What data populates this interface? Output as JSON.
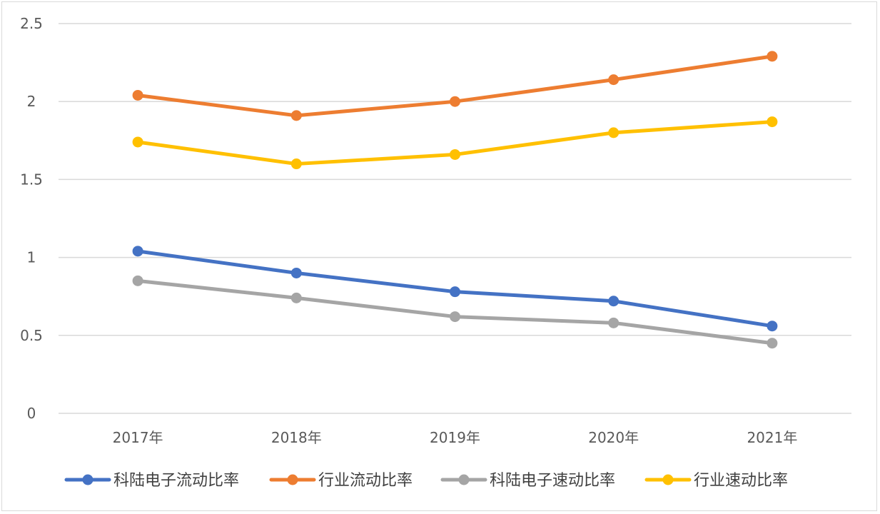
{
  "chart_data": {
    "type": "line",
    "title": "",
    "xlabel": "",
    "ylabel": "",
    "categories": [
      "2017年",
      "2018年",
      "2019年",
      "2020年",
      "2021年"
    ],
    "ylim": [
      0,
      2.5
    ],
    "yticks": [
      "0",
      "0.5",
      "1",
      "1.5",
      "2",
      "2.5"
    ],
    "grid": true,
    "legend_position": "bottom",
    "series": [
      {
        "name": "科陆电子流动比率",
        "color": "#4472C4",
        "values": [
          1.04,
          0.9,
          0.78,
          0.72,
          0.56
        ]
      },
      {
        "name": "行业流动比率",
        "color": "#ED7D31",
        "values": [
          2.04,
          1.91,
          2.0,
          2.14,
          2.29
        ]
      },
      {
        "name": "科陆电子速动比率",
        "color": "#A5A5A5",
        "values": [
          0.85,
          0.74,
          0.62,
          0.58,
          0.45
        ]
      },
      {
        "name": "行业速动比率",
        "color": "#FFC000",
        "values": [
          1.74,
          1.6,
          1.66,
          1.8,
          1.87
        ]
      }
    ]
  }
}
